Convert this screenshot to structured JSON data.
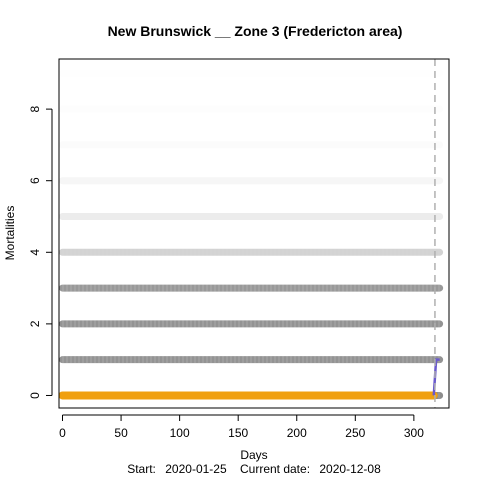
{
  "chart_data": {
    "type": "scatter",
    "title": "New Brunswick __ Zone 3 (Fredericton area)",
    "xlabel": "Days",
    "ylabel": "Mortalities",
    "footer": {
      "start_label": "Start:",
      "start_date": "2020-01-25",
      "current_label": "Current date:",
      "current_date": "2020-12-08"
    },
    "xlim": [
      -3,
      330
    ],
    "ylim": [
      -0.35,
      9.4
    ],
    "x_ticks": [
      0,
      50,
      100,
      150,
      200,
      250,
      300
    ],
    "y_ticks": [
      0,
      2,
      4,
      6,
      8
    ],
    "x_range_days": [
      0,
      322
    ],
    "current_day": 318,
    "grey_levels": [
      {
        "mortalities": 0,
        "opacity": 0.9
      },
      {
        "mortalities": 1,
        "opacity": 0.85
      },
      {
        "mortalities": 2,
        "opacity": 0.85
      },
      {
        "mortalities": 3,
        "opacity": 0.8
      },
      {
        "mortalities": 4,
        "opacity": 0.35
      },
      {
        "mortalities": 5,
        "opacity": 0.15
      },
      {
        "mortalities": 6,
        "opacity": 0.07
      },
      {
        "mortalities": 7,
        "opacity": 0.035
      },
      {
        "mortalities": 8,
        "opacity": 0.02
      },
      {
        "mortalities": 9,
        "opacity": 0.01
      }
    ],
    "observed": {
      "x_start": 0,
      "x_end": 317,
      "value": 0,
      "color": "#f0a010"
    },
    "projection": {
      "points": [
        [
          317,
          0
        ],
        [
          319,
          1
        ],
        [
          322,
          1
        ]
      ],
      "color": "#6a5acd"
    },
    "colors": {
      "grey": "#808080",
      "observed": "#f0a010",
      "projection": "#6a5acd",
      "vline": "#b0b0b0"
    }
  }
}
